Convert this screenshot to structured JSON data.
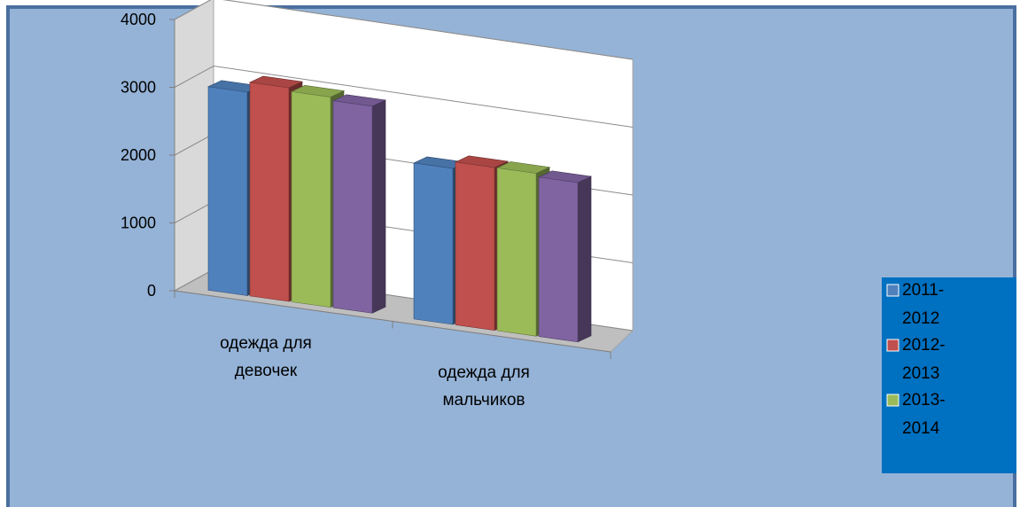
{
  "chart_data": {
    "type": "bar",
    "title": "",
    "xlabel": "",
    "ylabel": "",
    "ylim": [
      0,
      4000
    ],
    "yticks": [
      "0",
      "1000",
      "2000",
      "3000",
      "4000"
    ],
    "grid": true,
    "style": "3d-clustered-column",
    "categories": [
      [
        "одежда для",
        "девочек"
      ],
      [
        "одежда для",
        "мальчиков"
      ]
    ],
    "series": [
      {
        "name": [
          "2011-",
          "2012"
        ],
        "values": [
          3000,
          2300
        ],
        "color": "#4F81BD"
      },
      {
        "name": [
          "2012-",
          "2013"
        ],
        "values": [
          3150,
          2400
        ],
        "color": "#C0504D"
      },
      {
        "name": [
          "2013-",
          "2014"
        ],
        "values": [
          3100,
          2400
        ],
        "color": "#9BBB59"
      },
      {
        "name": null,
        "values": [
          3050,
          2350
        ],
        "color": "#8064A2"
      }
    ],
    "legend_position": "right"
  },
  "colors": {
    "frame_background": "#95B3D7",
    "frame_border": "#4A6FA0",
    "back_wall": "#FFFFFF",
    "side_wall": "#D9D9D9",
    "floor": "#BFBFBF",
    "legend_background": "#0070C0"
  }
}
